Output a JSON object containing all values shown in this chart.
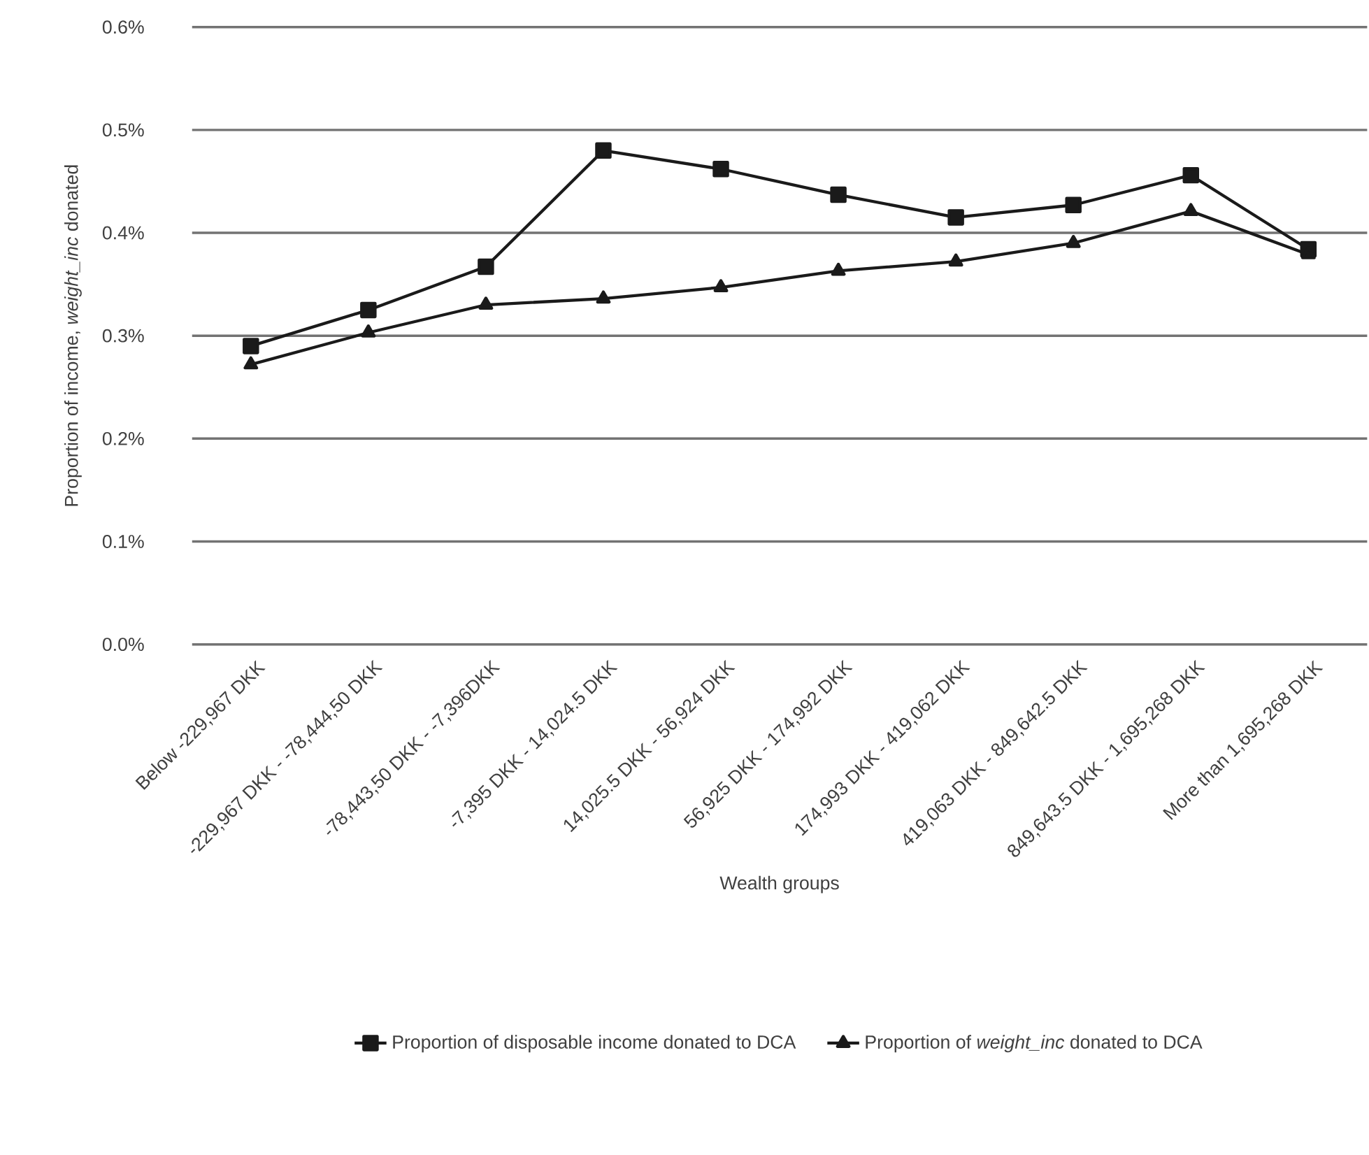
{
  "chart_data": {
    "type": "line",
    "xlabel": "Wealth groups",
    "ylabel": "Proportion of income, *weight_inc* donated",
    "categories": [
      "Below -229,967 DKK",
      "-229,967 DKK - -78,444,50 DKK",
      "-78,443,50 DKK - -7,396DKK",
      "-7,395 DKK - 14,024.5 DKK",
      "14,025.5 DKK - 56,924 DKK",
      "56,925 DKK - 174,992 DKK",
      "174,993 DKK - 419,062 DKK",
      "419,063 DKK - 849,642.5 DKK",
      "849,643.5 DKK - 1,695,268 DKK",
      "More than 1,695,268 DKK"
    ],
    "series": [
      {
        "name": "Proportion of disposable income donated to DCA",
        "color": "#1a1a1a",
        "marker": "square",
        "values": [
          0.29,
          0.325,
          0.367,
          0.48,
          0.462,
          0.437,
          0.415,
          0.427,
          0.456,
          0.384
        ]
      },
      {
        "name": "Proportion of *weight_inc* donated to DCA",
        "color": "#1a1a1a",
        "marker": "triangle",
        "values": [
          0.272,
          0.303,
          0.33,
          0.336,
          0.347,
          0.363,
          0.372,
          0.39,
          0.421,
          0.379
        ]
      }
    ],
    "ylim": [
      0,
      0.6
    ],
    "yticks": [
      {
        "value": 0,
        "label": "0.0%"
      },
      {
        "value": 0.1,
        "label": "0.1%"
      },
      {
        "value": 0.2,
        "label": "0.2%"
      },
      {
        "value": 0.3,
        "label": "0.3%"
      },
      {
        "value": 0.4,
        "label": "0.4%"
      },
      {
        "value": 0.5,
        "label": "0.5%"
      },
      {
        "value": 0.6,
        "label": "0.6%"
      }
    ],
    "grid": "y",
    "legend": "bottom",
    "line_style": "solid"
  }
}
